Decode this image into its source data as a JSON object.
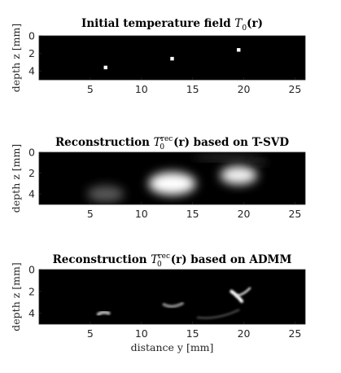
{
  "chart_data": [
    {
      "type": "heatmap",
      "id": "initial",
      "title_prefix": "Initial temperature field ",
      "title_math": "T",
      "title_sub": "0",
      "title_sup": "",
      "title_suffix": "(r)",
      "ylabel": "depth z [mm]",
      "xlabel": "",
      "xlim": [
        0,
        26
      ],
      "ylim": [
        0,
        5
      ],
      "y_reversed": true,
      "xticks": [
        5,
        10,
        15,
        20,
        25
      ],
      "yticks": [
        0,
        2,
        4
      ],
      "colormap": "gray",
      "background": "#000000",
      "sources": [
        {
          "x": 6.5,
          "z": 3.6,
          "shape": "square",
          "size_mm": 0.35,
          "intensity": 1.0
        },
        {
          "x": 13.0,
          "z": 2.6,
          "shape": "square",
          "size_mm": 0.35,
          "intensity": 1.0
        },
        {
          "x": 19.5,
          "z": 1.6,
          "shape": "square",
          "size_mm": 0.35,
          "intensity": 1.0
        }
      ]
    },
    {
      "type": "heatmap",
      "id": "tsvd",
      "title_prefix": "Reconstruction ",
      "title_math": "T",
      "title_sub": "0",
      "title_sup": "rec",
      "title_suffix": "(r) based on T-SVD",
      "ylabel": "depth z [mm]",
      "xlabel": "",
      "xlim": [
        0,
        26
      ],
      "ylim": [
        0,
        5
      ],
      "y_reversed": true,
      "xticks": [
        5,
        10,
        15,
        20,
        25
      ],
      "yticks": [
        0,
        2,
        4
      ],
      "colormap": "gray",
      "background": "#000000",
      "blobs": [
        {
          "x": 6.5,
          "z": 4.0,
          "rx": 1.8,
          "rz": 0.8,
          "intensity": 0.35
        },
        {
          "x": 13.0,
          "z": 3.0,
          "rx": 2.3,
          "rz": 1.1,
          "intensity": 1.0
        },
        {
          "x": 19.5,
          "z": 2.2,
          "rx": 1.8,
          "rz": 0.9,
          "intensity": 0.95
        },
        {
          "x": 18.5,
          "z": 0.5,
          "rx": 3.5,
          "rz": 0.25,
          "intensity": 0.25
        },
        {
          "x": 21.5,
          "z": 1.0,
          "rx": 0.8,
          "rz": 0.25,
          "intensity": 0.2
        }
      ]
    },
    {
      "type": "heatmap",
      "id": "admm",
      "title_prefix": "Reconstruction ",
      "title_math": "T",
      "title_sub": "0",
      "title_sup": "rec",
      "title_suffix": "(r) based on ADMM",
      "ylabel": "depth z [mm]",
      "xlabel": "distance y [mm]",
      "xlim": [
        0,
        26
      ],
      "ylim": [
        0,
        5
      ],
      "y_reversed": true,
      "xticks": [
        5,
        10,
        15,
        20,
        25
      ],
      "yticks": [
        0,
        2,
        4
      ],
      "colormap": "gray",
      "background": "#000000",
      "arcs": [
        {
          "x1": 5.8,
          "z1": 4.1,
          "xc": 6.2,
          "zc": 3.8,
          "x2": 6.8,
          "z2": 4.0,
          "width": 0.35,
          "intensity": 0.7
        },
        {
          "x1": 12.2,
          "z1": 3.2,
          "xc": 13.0,
          "zc": 3.6,
          "x2": 14.0,
          "z2": 3.1,
          "width": 0.3,
          "intensity": 0.55
        },
        {
          "x1": 15.5,
          "z1": 4.4,
          "xc": 17.5,
          "zc": 4.6,
          "x2": 19.5,
          "z2": 3.7,
          "width": 0.2,
          "intensity": 0.3
        },
        {
          "x1": 18.8,
          "z1": 2.0,
          "xc": 19.4,
          "zc": 2.4,
          "x2": 19.8,
          "z2": 2.9,
          "width": 0.35,
          "intensity": 1.0
        },
        {
          "x1": 19.3,
          "z1": 2.4,
          "xc": 20.0,
          "zc": 2.3,
          "x2": 20.6,
          "z2": 1.7,
          "width": 0.2,
          "intensity": 0.9
        }
      ]
    }
  ]
}
